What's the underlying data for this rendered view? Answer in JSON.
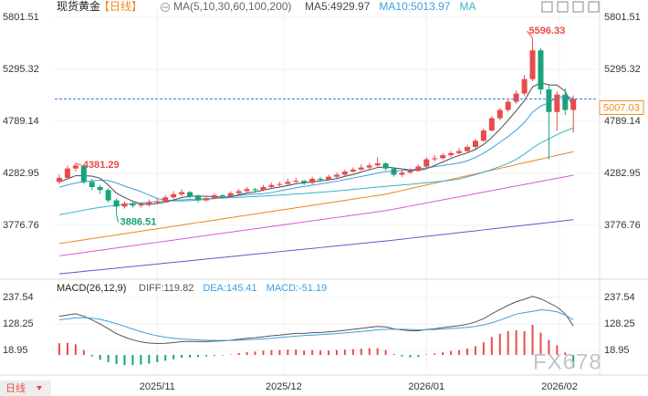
{
  "chart_data": [
    {
      "type": "candlestick",
      "title": "现货黄金",
      "period": "【日线】",
      "indicator": "MA(5,10,30,60,100,200)",
      "ylim": [
        3261.8,
        5881.4
      ],
      "yticks": [
        3776.76,
        4282.95,
        4789.14,
        5295.32,
        5801.51
      ],
      "grid": true,
      "xticks": [
        {
          "value": 12,
          "label": "2025/11"
        },
        {
          "value": 27.5,
          "label": "2025/12"
        },
        {
          "value": 45,
          "label": "2026/01"
        },
        {
          "value": 61.3,
          "label": "2026/02"
        }
      ],
      "up_color": "#e94b4b",
      "down_color": "#1aa37a",
      "candles": [
        [
          4200,
          4270,
          4180,
          4240
        ],
        [
          4240,
          4360,
          4230,
          4330
        ],
        [
          4330,
          4381.29,
          4300,
          4360
        ],
        [
          4360,
          4370,
          4180,
          4200
        ],
        [
          4200,
          4230,
          4120,
          4150
        ],
        [
          4150,
          4170,
          4080,
          4120
        ],
        [
          4120,
          4140,
          4000,
          4020
        ],
        [
          4020,
          4040,
          3886.51,
          3960
        ],
        [
          3960,
          4010,
          3940,
          3990
        ],
        [
          3990,
          4010,
          3950,
          3970
        ],
        [
          3970,
          4000,
          3950,
          3980
        ],
        [
          3980,
          4030,
          3960,
          4000
        ],
        [
          4000,
          4040,
          3980,
          4010
        ],
        [
          4010,
          4070,
          4000,
          4050
        ],
        [
          4050,
          4110,
          4030,
          4080
        ],
        [
          4080,
          4130,
          4060,
          4100
        ],
        [
          4100,
          4110,
          4040,
          4060
        ],
        [
          4060,
          4080,
          4000,
          4020
        ],
        [
          4020,
          4060,
          4010,
          4040
        ],
        [
          4040,
          4090,
          4030,
          4070
        ],
        [
          4070,
          4080,
          4040,
          4060
        ],
        [
          4060,
          4110,
          4050,
          4090
        ],
        [
          4090,
          4130,
          4080,
          4110
        ],
        [
          4110,
          4150,
          4100,
          4130
        ],
        [
          4130,
          4140,
          4100,
          4120
        ],
        [
          4120,
          4170,
          4110,
          4150
        ],
        [
          4150,
          4190,
          4140,
          4170
        ],
        [
          4170,
          4200,
          4150,
          4180
        ],
        [
          4180,
          4230,
          4170,
          4200
        ],
        [
          4200,
          4240,
          4190,
          4210
        ],
        [
          4210,
          4220,
          4170,
          4190
        ],
        [
          4190,
          4250,
          4180,
          4230
        ],
        [
          4230,
          4250,
          4200,
          4220
        ],
        [
          4220,
          4270,
          4210,
          4250
        ],
        [
          4250,
          4290,
          4240,
          4270
        ],
        [
          4270,
          4320,
          4260,
          4300
        ],
        [
          4300,
          4340,
          4290,
          4320
        ],
        [
          4320,
          4370,
          4310,
          4340
        ],
        [
          4340,
          4380,
          4320,
          4360
        ],
        [
          4360,
          4440,
          4350,
          4380
        ],
        [
          4380,
          4390,
          4310,
          4330
        ],
        [
          4330,
          4340,
          4250,
          4270
        ],
        [
          4270,
          4310,
          4250,
          4290
        ],
        [
          4290,
          4330,
          4280,
          4310
        ],
        [
          4310,
          4370,
          4300,
          4350
        ],
        [
          4350,
          4440,
          4340,
          4420
        ],
        [
          4420,
          4460,
          4400,
          4430
        ],
        [
          4430,
          4480,
          4420,
          4460
        ],
        [
          4460,
          4500,
          4440,
          4480
        ],
        [
          4480,
          4530,
          4470,
          4500
        ],
        [
          4500,
          4560,
          4490,
          4540
        ],
        [
          4540,
          4620,
          4520,
          4600
        ],
        [
          4600,
          4720,
          4590,
          4700
        ],
        [
          4700,
          4840,
          4690,
          4820
        ],
        [
          4820,
          4920,
          4800,
          4900
        ],
        [
          4900,
          5000,
          4880,
          4980
        ],
        [
          4980,
          5090,
          4960,
          5060
        ],
        [
          5060,
          5240,
          5040,
          5200
        ],
        [
          5200,
          5596.33,
          5180,
          5480
        ],
        [
          5480,
          5500,
          5050,
          5100
        ],
        [
          5100,
          5150,
          4420,
          4880
        ],
        [
          4880,
          5080,
          4700,
          5050
        ],
        [
          5050,
          5110,
          4850,
          4900
        ],
        [
          4900,
          5040,
          4680,
          5007.03
        ]
      ],
      "series": [
        {
          "legend": "MA5:4929.97",
          "color": "#4a4a4a",
          "values": [
            4200,
            4230,
            4260,
            4260,
            4256,
            4236,
            4170,
            4090,
            4048,
            4012,
            3984,
            3980,
            3990,
            4002,
            4024,
            4048,
            4060,
            4062,
            4060,
            4058,
            4050,
            4056,
            4074,
            4092,
            4102,
            4120,
            4136,
            4150,
            4164,
            4182,
            4190,
            4202,
            4210,
            4220,
            4232,
            4254,
            4272,
            4296,
            4318,
            4340,
            4346,
            4336,
            4326,
            4316,
            4310,
            4328,
            4360,
            4394,
            4428,
            4458,
            4482,
            4516,
            4564,
            4632,
            4712,
            4800,
            4892,
            4992,
            5124,
            5164,
            5144,
            5142,
            5082,
            4929.97
          ]
        },
        {
          "legend": "MA10:5013.97",
          "color": "#3c9ee0",
          "values": [
            4150,
            4170,
            4190,
            4200,
            4210,
            4218,
            4213,
            4190,
            4160,
            4132,
            4106,
            4073,
            4038,
            4023,
            4016,
            4014,
            4018,
            4024,
            4029,
            4039,
            4047,
            4056,
            4068,
            4076,
            4080,
            4085,
            4096,
            4112,
            4128,
            4142,
            4155,
            4169,
            4180,
            4192,
            4207,
            4222,
            4237,
            4253,
            4269,
            4286,
            4300,
            4304,
            4311,
            4317,
            4325,
            4337,
            4348,
            4360,
            4372,
            4384,
            4405,
            4438,
            4479,
            4530,
            4585,
            4641,
            4704,
            4778,
            4878,
            4938,
            4972,
            5017,
            5037,
            5013.97
          ]
        },
        {
          "legend": "MA",
          "color": "#35b5c5",
          "values": [
            3880,
            3895,
            3910,
            3925,
            3940,
            3952,
            3962,
            3972,
            3980,
            3988,
            3995,
            4002,
            4008,
            4014,
            4020,
            4026,
            4030,
            4034,
            4037,
            4040,
            4043,
            4046,
            4050,
            4054,
            4058,
            4062,
            4067,
            4072,
            4077,
            4082,
            4087,
            4093,
            4099,
            4105,
            4112,
            4119,
            4126,
            4134,
            4142,
            4150,
            4157,
            4163,
            4170,
            4177,
            4184,
            4192,
            4200,
            4208,
            4217,
            4226,
            4250,
            4270,
            4295,
            4320,
            4350,
            4380,
            4420,
            4470,
            4530,
            4580,
            4620,
            4660,
            4695,
            4725
          ]
        },
        {
          "color": "#f0821e",
          "values": [
            3600,
            3612,
            3624,
            3636,
            3648,
            3660,
            3672,
            3684,
            3696,
            3708,
            3720,
            3732,
            3744,
            3756,
            3768,
            3780,
            3792,
            3804,
            3816,
            3828,
            3840,
            3852,
            3864,
            3876,
            3888,
            3900,
            3912,
            3924,
            3936,
            3948,
            3960,
            3972,
            3984,
            3996,
            4008,
            4020,
            4032,
            4044,
            4056,
            4068,
            4080,
            4098,
            4116,
            4134,
            4152,
            4170,
            4188,
            4206,
            4224,
            4242,
            4260,
            4278,
            4296,
            4314,
            4332,
            4350,
            4368,
            4386,
            4404,
            4422,
            4440,
            4458,
            4476,
            4494
          ]
        },
        {
          "color": "#d957d9",
          "values": [
            3480,
            3491,
            3502,
            3513,
            3524,
            3535,
            3546,
            3557,
            3568,
            3579,
            3590,
            3601,
            3612,
            3623,
            3634,
            3645,
            3656,
            3667,
            3678,
            3689,
            3700,
            3711,
            3722,
            3733,
            3744,
            3755,
            3766,
            3777,
            3788,
            3799,
            3810,
            3821,
            3832,
            3843,
            3854,
            3865,
            3876,
            3887,
            3898,
            3909,
            3920,
            3935,
            3950,
            3965,
            3980,
            3995,
            4010,
            4025,
            4040,
            4055,
            4070,
            4085,
            4100,
            4115,
            4130,
            4145,
            4160,
            4175,
            4190,
            4205,
            4220,
            4235,
            4250,
            4265
          ]
        },
        {
          "color": "#6655d0",
          "values": [
            3305,
            3313,
            3321,
            3329,
            3337,
            3345,
            3353,
            3361,
            3369,
            3377,
            3385,
            3393,
            3401,
            3409,
            3417,
            3425,
            3433,
            3441,
            3449,
            3457,
            3465,
            3473,
            3481,
            3489,
            3497,
            3505,
            3513,
            3521,
            3529,
            3537,
            3545,
            3553,
            3561,
            3569,
            3577,
            3585,
            3593,
            3601,
            3609,
            3617,
            3625,
            3634,
            3643,
            3652,
            3661,
            3670,
            3679,
            3688,
            3697,
            3706,
            3715,
            3724,
            3733,
            3742,
            3751,
            3760,
            3769,
            3778,
            3787,
            3796,
            3805,
            3814,
            3823,
            3832
          ]
        }
      ],
      "last_price": 5007.03,
      "last_price_color": "#f08a24",
      "annotations": [
        {
          "index": 58,
          "value": 5596.33,
          "side": "above",
          "color": "#e94b4b"
        },
        {
          "index": 2,
          "value": 4381.29,
          "side": "right",
          "color": "#e94b4b"
        },
        {
          "index": 7,
          "value": 3886.51,
          "side": "below",
          "color": "#1aa37a"
        }
      ]
    },
    {
      "type": "macd",
      "title": "MACD(26,12,9)",
      "ylim": [
        -71.6,
        305.4
      ],
      "yticks": [
        18.95,
        128.25,
        237.54
      ],
      "grid": true,
      "series": [
        {
          "legend": "DIFF:119.82",
          "color": "#555555",
          "values": [
            160,
            165,
            170,
            160,
            145,
            128,
            108,
            88,
            74,
            62,
            54,
            49,
            47,
            48,
            51,
            55,
            56,
            55,
            55,
            57,
            58,
            61,
            65,
            69,
            71,
            75,
            79,
            82,
            86,
            89,
            89,
            92,
            93,
            95,
            98,
            102,
            106,
            110,
            114,
            118,
            116,
            108,
            103,
            100,
            100,
            105,
            108,
            113,
            117,
            121,
            127,
            136,
            150,
            170,
            188,
            205,
            220,
            230,
            242,
            232,
            215,
            198,
            170,
            119.82
          ]
        },
        {
          "legend": "DEA:145.41",
          "color": "#3c9ee0",
          "values": [
            145,
            149,
            153,
            154,
            152,
            147,
            139,
            129,
            118,
            107,
            96,
            87,
            79,
            73,
            69,
            66,
            64,
            62,
            61,
            60,
            60,
            60,
            61,
            63,
            64,
            66,
            69,
            72,
            75,
            78,
            80,
            82,
            84,
            86,
            88,
            91,
            94,
            97,
            100,
            104,
            106,
            106,
            106,
            105,
            104,
            104,
            105,
            107,
            109,
            111,
            114,
            118,
            124,
            133,
            144,
            156,
            169,
            175,
            180,
            186,
            184,
            178,
            165,
            145.41
          ]
        }
      ],
      "histogram": {
        "legend": "MACD:-51.19",
        "legend_color": "#3c9ee0",
        "up_color": "#e94b4b",
        "down_color": "#1aa37a",
        "values": [
          48,
          50,
          44,
          20,
          -6,
          -20,
          -30,
          -38,
          -42,
          -42,
          -40,
          -36,
          -30,
          -24,
          -18,
          -12,
          -10,
          -8,
          -6,
          -4,
          -2,
          2,
          8,
          12,
          14,
          18,
          20,
          20,
          22,
          22,
          18,
          20,
          18,
          18,
          20,
          22,
          24,
          26,
          28,
          28,
          20,
          4,
          -6,
          -10,
          -8,
          2,
          6,
          12,
          16,
          20,
          26,
          36,
          52,
          74,
          88,
          98,
          102,
          98,
          124,
          92,
          62,
          40,
          10,
          -51.19
        ]
      }
    }
  ],
  "footer": {
    "button": "日线",
    "watermark": "FX678"
  }
}
